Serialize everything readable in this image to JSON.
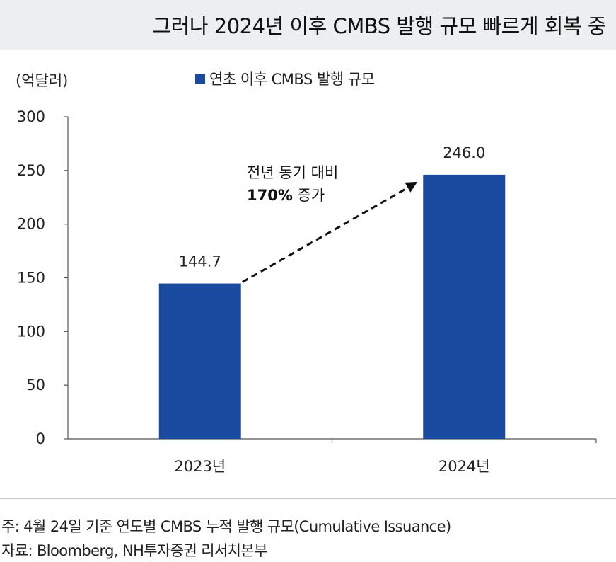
{
  "title": "그러나 2024년 이후 CMBS 발행 규모 빠르게 회복 중",
  "unit": "(억달러)",
  "notes": {
    "note": "주: 4월 24일 기준 연도별 CMBS 누적 발행 규모(Cumulative Issuance)",
    "source": "자료: Bloomberg, NH투자증권 리서치본부"
  },
  "annotation": {
    "line1": "전년 동기 대비",
    "line2_bold": "170%",
    "line2_rest": " 증가"
  },
  "colors": {
    "bar": "#1a4aa0",
    "axis": "#555555",
    "arrow": "#111111"
  },
  "chart_data": {
    "type": "bar",
    "categories": [
      "2023년",
      "2024년"
    ],
    "series": [
      {
        "name": "연초 이후 CMBS 발행 규모",
        "values": [
          144.7,
          246.0
        ]
      }
    ],
    "data_labels": [
      "144.7",
      "246.0"
    ],
    "ylim": [
      0,
      300
    ],
    "yticks": [
      0,
      50,
      100,
      150,
      200,
      250,
      300
    ],
    "grid": false,
    "legend": "top-center"
  }
}
